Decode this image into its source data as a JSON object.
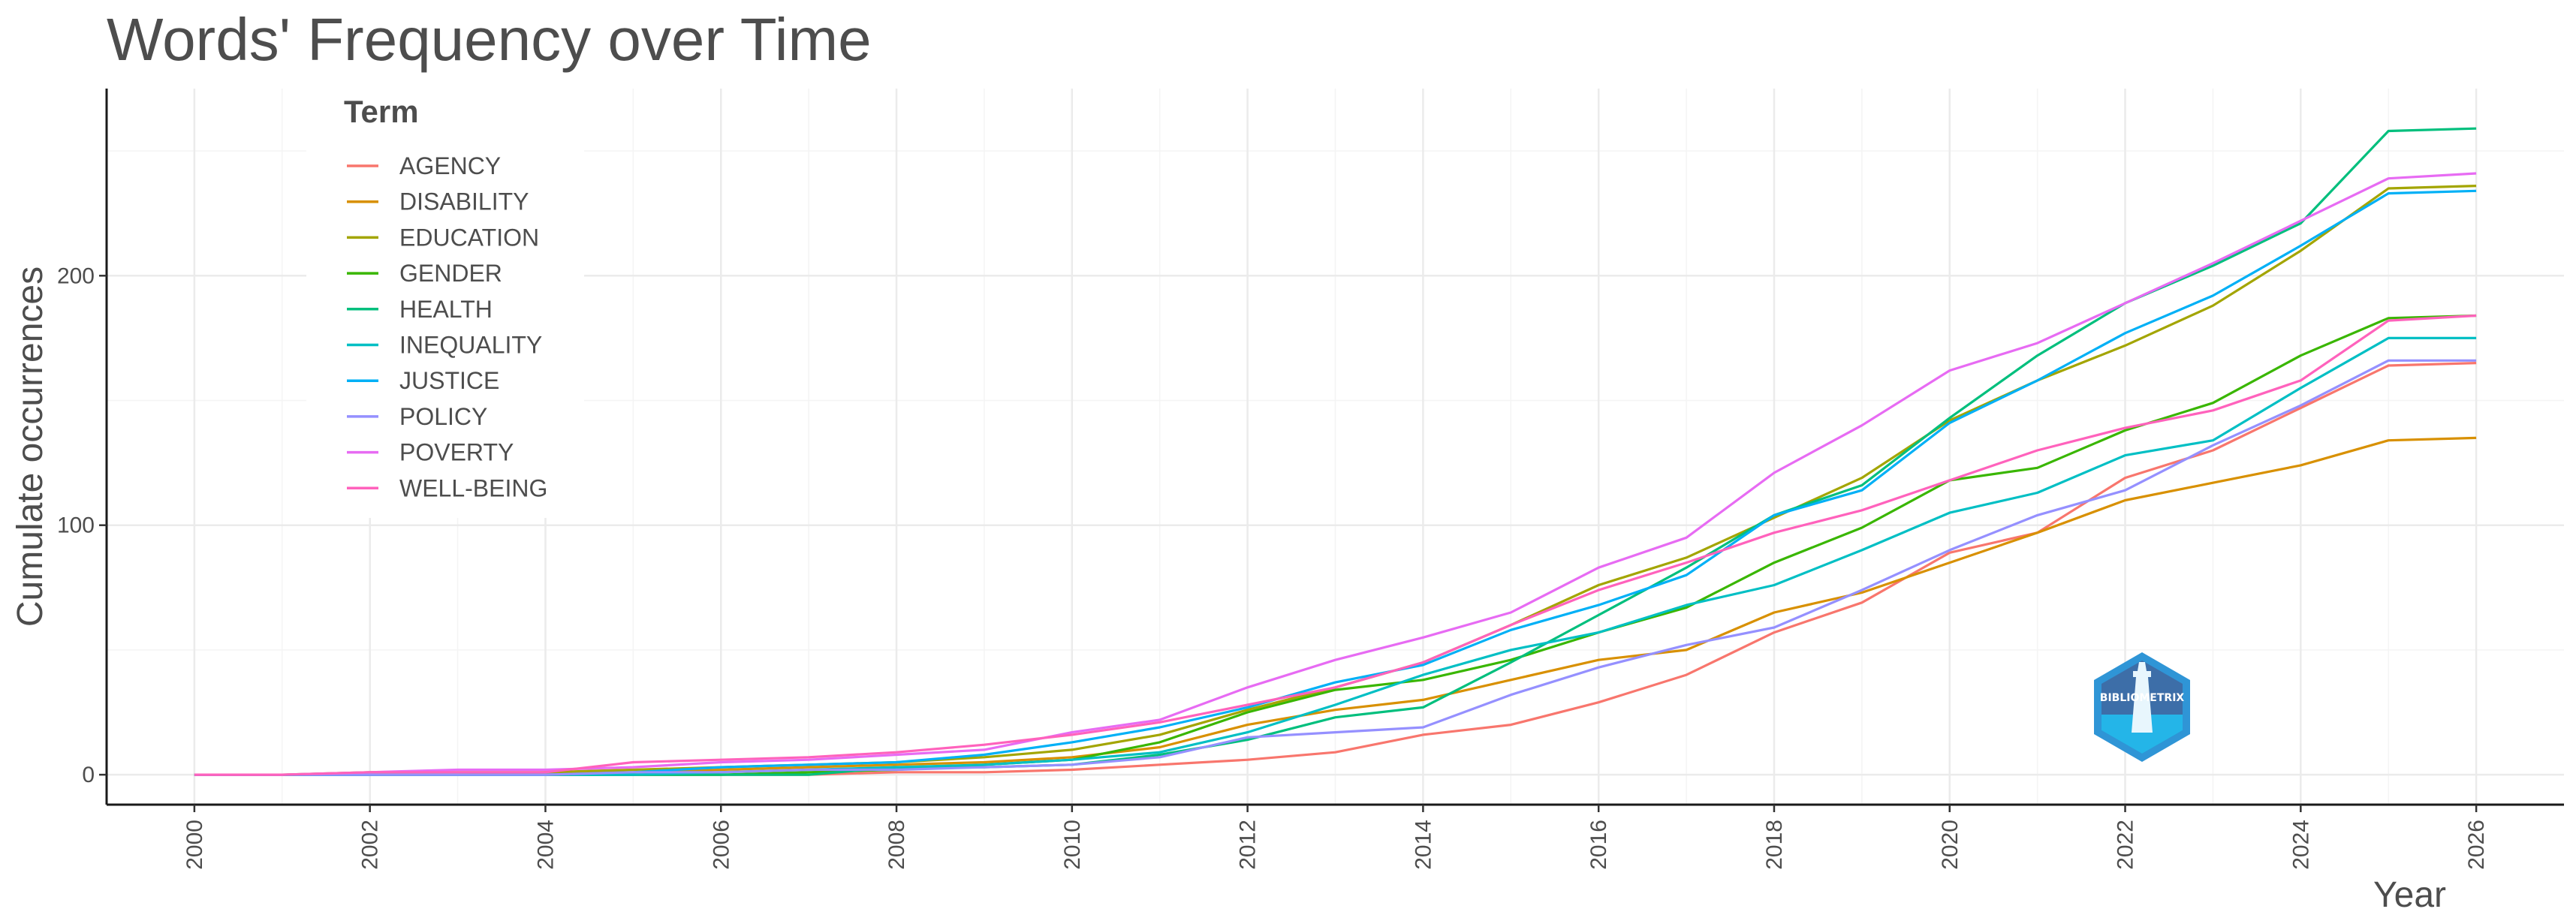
{
  "chart_data": {
    "type": "line",
    "title": "Words' Frequency over Time",
    "xlabel": "Year",
    "ylabel": "Cumulate occurrences",
    "xlim": [
      1999,
      2027
    ],
    "ylim": [
      -12,
      275
    ],
    "x_ticks": [
      2000,
      2002,
      2004,
      2006,
      2008,
      2010,
      2012,
      2014,
      2016,
      2018,
      2020,
      2022,
      2024,
      2026
    ],
    "y_ticks": [
      0,
      100,
      200
    ],
    "grid": true,
    "legend": {
      "title": "Term",
      "position": "top-left"
    },
    "logo_text": "BIBLIOMETRIX",
    "x": [
      2000,
      2001,
      2002,
      2003,
      2004,
      2005,
      2006,
      2007,
      2008,
      2009,
      2010,
      2011,
      2012,
      2013,
      2014,
      2015,
      2016,
      2017,
      2018,
      2019,
      2020,
      2021,
      2022,
      2023,
      2024,
      2025,
      2026
    ],
    "series": [
      {
        "name": "AGENCY",
        "color": "#F8766D",
        "values": [
          0,
          0,
          0,
          0,
          0,
          0,
          0,
          0,
          1,
          1,
          2,
          4,
          6,
          9,
          16,
          20,
          29,
          40,
          57,
          69,
          89,
          97,
          119,
          130,
          147,
          164,
          165
        ]
      },
      {
        "name": "DISABILITY",
        "color": "#D89000",
        "values": [
          0,
          0,
          0,
          0,
          1,
          1,
          2,
          3,
          4,
          5,
          7,
          11,
          20,
          26,
          30,
          38,
          46,
          50,
          65,
          73,
          85,
          97,
          110,
          117,
          124,
          134,
          135
        ]
      },
      {
        "name": "EDUCATION",
        "color": "#A3A500",
        "values": [
          0,
          0,
          1,
          1,
          1,
          2,
          3,
          4,
          5,
          7,
          10,
          16,
          26,
          35,
          45,
          60,
          76,
          87,
          103,
          119,
          142,
          158,
          172,
          188,
          210,
          235,
          236
        ]
      },
      {
        "name": "GENDER",
        "color": "#39B600",
        "values": [
          0,
          0,
          0,
          0,
          0,
          0,
          0,
          1,
          2,
          4,
          6,
          13,
          25,
          34,
          38,
          46,
          57,
          67,
          85,
          99,
          118,
          123,
          138,
          149,
          168,
          183,
          184
        ]
      },
      {
        "name": "HEALTH",
        "color": "#00BF7D",
        "values": [
          0,
          0,
          0,
          0,
          0,
          0,
          0,
          0,
          3,
          3,
          4,
          8,
          14,
          23,
          27,
          45,
          64,
          83,
          104,
          116,
          143,
          168,
          189,
          204,
          221,
          258,
          259
        ]
      },
      {
        "name": "INEQUALITY",
        "color": "#00BFC4",
        "values": [
          0,
          0,
          0,
          0,
          0,
          0,
          1,
          2,
          3,
          4,
          6,
          9,
          17,
          28,
          40,
          50,
          57,
          68,
          76,
          90,
          105,
          113,
          128,
          134,
          155,
          175,
          175
        ]
      },
      {
        "name": "JUSTICE",
        "color": "#00B0F6",
        "values": [
          0,
          0,
          0,
          0,
          0,
          1,
          3,
          4,
          5,
          8,
          13,
          19,
          27,
          37,
          44,
          58,
          68,
          80,
          104,
          114,
          141,
          158,
          177,
          192,
          212,
          233,
          234
        ]
      },
      {
        "name": "POLICY",
        "color": "#9590FF",
        "values": [
          0,
          0,
          0,
          0,
          0,
          1,
          1,
          2,
          2,
          3,
          4,
          7,
          15,
          17,
          19,
          32,
          43,
          52,
          59,
          74,
          90,
          104,
          114,
          132,
          148,
          166,
          166
        ]
      },
      {
        "name": "POVERTY",
        "color": "#E76BF3",
        "values": [
          0,
          0,
          1,
          2,
          2,
          3,
          5,
          6,
          8,
          10,
          17,
          22,
          35,
          46,
          55,
          65,
          83,
          95,
          121,
          140,
          162,
          173,
          189,
          205,
          222,
          239,
          241
        ]
      },
      {
        "name": "WELL-BEING",
        "color": "#FF62BC",
        "values": [
          0,
          0,
          1,
          1,
          1,
          5,
          6,
          7,
          9,
          12,
          16,
          21,
          28,
          35,
          45,
          60,
          74,
          85,
          97,
          106,
          118,
          130,
          139,
          146,
          158,
          182,
          184
        ]
      }
    ]
  }
}
